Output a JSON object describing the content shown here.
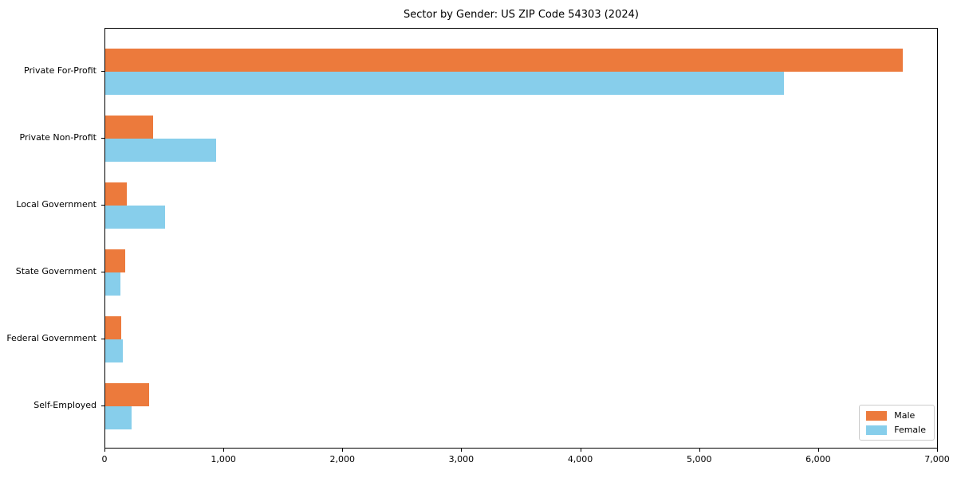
{
  "title": "Sector by Gender: US ZIP Code 54303 (2024)",
  "chart_data": {
    "type": "bar",
    "orientation": "horizontal",
    "title": "Sector by Gender: US ZIP Code 54303 (2024)",
    "categories": [
      "Private For-Profit",
      "Private Non-Profit",
      "Local Government",
      "State Government",
      "Federal Government",
      "Self-Employed"
    ],
    "series": [
      {
        "name": "Male",
        "color": "#ec7a3c",
        "values": [
          6710,
          400,
          180,
          170,
          135,
          370
        ]
      },
      {
        "name": "Female",
        "color": "#87ceeb",
        "values": [
          5710,
          930,
          505,
          130,
          145,
          220
        ]
      }
    ],
    "xlim": [
      0,
      7000
    ],
    "xticks": [
      0,
      1000,
      2000,
      3000,
      4000,
      5000,
      6000,
      7000
    ],
    "xtick_labels": [
      "0",
      "1,000",
      "2,000",
      "3,000",
      "4,000",
      "5,000",
      "6,000",
      "7,000"
    ],
    "xlabel": "",
    "ylabel": "",
    "grid": false,
    "legend_position": "lower right",
    "axis_color": "#000000",
    "background_color": "#ffffff"
  }
}
